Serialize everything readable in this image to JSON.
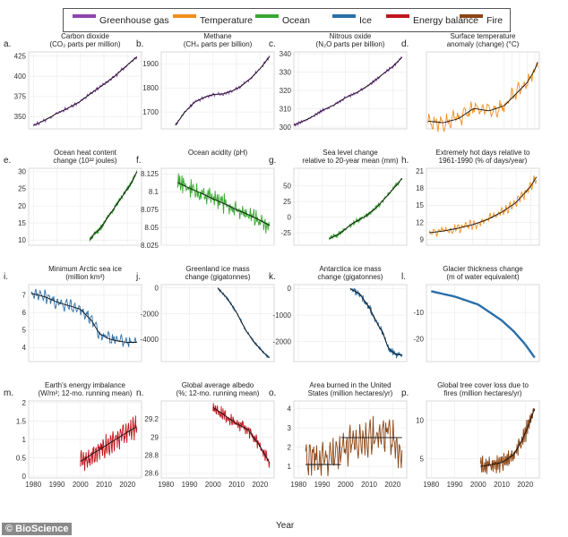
{
  "legend": [
    {
      "label": "Greenhouse gas",
      "color": "#8e44ad"
    },
    {
      "label": "Temperature",
      "color": "#f28e1c"
    },
    {
      "label": "Ocean",
      "color": "#3aa832"
    },
    {
      "label": "Ice",
      "color": "#2c6fa8"
    },
    {
      "label": "Energy balance",
      "color": "#c0141c"
    },
    {
      "label": "Fire",
      "color": "#8b4513"
    }
  ],
  "xlabel": "Year",
  "credit": "© BioScience",
  "chart_data": [
    {
      "label": "a.",
      "title": [
        "Carbon dioxide",
        "(CO₂ parts per million)"
      ],
      "category": "Greenhouse gas",
      "color": "#8e44ad",
      "type": "line",
      "x": [
        1980,
        1985,
        1990,
        1995,
        2000,
        2005,
        2010,
        2015,
        2020,
        2024
      ],
      "y": [
        339,
        346,
        354,
        361,
        369,
        380,
        390,
        401,
        414,
        424
      ],
      "ylim": [
        335,
        430
      ],
      "yticks": [
        350,
        375,
        400,
        425
      ],
      "xlim": [
        1978,
        2026
      ],
      "xticks": [
        1980,
        1990,
        2000,
        2010,
        2020
      ],
      "showXTicks": false,
      "noise": 2.0,
      "freq": 1.6
    },
    {
      "label": "b.",
      "title": [
        "Methane",
        "(CH₄ parts per billion)"
      ],
      "category": "Greenhouse gas",
      "color": "#8e44ad",
      "type": "line",
      "x": [
        1984,
        1988,
        1992,
        1996,
        2000,
        2004,
        2008,
        2012,
        2016,
        2020,
        2024
      ],
      "y": [
        1645,
        1700,
        1740,
        1760,
        1773,
        1775,
        1787,
        1808,
        1840,
        1880,
        1930
      ],
      "ylim": [
        1630,
        1950
      ],
      "yticks": [
        1700,
        1800,
        1900
      ],
      "xlim": [
        1978,
        2026
      ],
      "xticks": [
        1980,
        1990,
        2000,
        2010,
        2020
      ],
      "showXTicks": false,
      "noise": 6,
      "freq": 1.6
    },
    {
      "label": "c.",
      "title": [
        "Nitrous oxide",
        "(N₂O parts per billion)"
      ],
      "category": "Greenhouse gas",
      "color": "#8e44ad",
      "type": "line",
      "x": [
        1978,
        1985,
        1990,
        1995,
        2000,
        2005,
        2010,
        2015,
        2020,
        2024
      ],
      "y": [
        301,
        305,
        309,
        312,
        316,
        319,
        323,
        328,
        333,
        338
      ],
      "ylim": [
        299,
        341
      ],
      "yticks": [
        300,
        310,
        320,
        330,
        340
      ],
      "xlim": [
        1978,
        2026
      ],
      "xticks": [
        1980,
        1990,
        2000,
        2010,
        2020
      ],
      "showXTicks": false,
      "noise": 0.8,
      "freq": 2.2
    },
    {
      "label": "d.",
      "title": [
        "Surface temperature",
        "anomaly (change) (°C)"
      ],
      "category": "Temperature",
      "color": "#f28e1c",
      "type": "line",
      "x": [
        1880,
        1900,
        1920,
        1940,
        1960,
        1980,
        2000,
        2010,
        2020,
        2024
      ],
      "y": [
        0.35,
        0.32,
        0.4,
        0.6,
        0.55,
        0.65,
        0.95,
        1.1,
        1.35,
        1.5
      ],
      "ylim": [
        0.2,
        1.7
      ],
      "yticks": [],
      "xlim": [
        1878,
        2026
      ],
      "xticks": [],
      "showXTicks": false,
      "noise": 0.16,
      "freq": 0.9
    },
    {
      "label": "e.",
      "title": [
        "Ocean heat content",
        "change (10²² joules)"
      ],
      "category": "Ocean",
      "color": "#3aa832",
      "type": "line",
      "x": [
        2004,
        2006,
        2008,
        2010,
        2012,
        2014,
        2016,
        2018,
        2020,
        2022,
        2024
      ],
      "y": [
        10,
        12,
        13,
        15,
        17,
        19,
        21,
        23,
        25,
        27,
        30
      ],
      "ylim": [
        8.5,
        31
      ],
      "yticks": [
        10,
        15,
        20,
        25,
        30
      ],
      "xlim": [
        1978,
        2026
      ],
      "xticks": [
        1980,
        1990,
        2000,
        2010,
        2020
      ],
      "showXTicks": false,
      "noise": 0.7,
      "freq": 2.1
    },
    {
      "label": "f.",
      "title": [
        "Ocean acidity (pH)"
      ],
      "category": "Ocean",
      "color": "#3aa832",
      "type": "line",
      "x": [
        1985,
        1990,
        1995,
        2000,
        2005,
        2010,
        2015,
        2020,
        2024
      ],
      "y": [
        8.113,
        8.105,
        8.098,
        8.09,
        8.083,
        8.075,
        8.068,
        8.06,
        8.053
      ],
      "ylim": [
        8.025,
        8.133
      ],
      "yticks": [
        8.025,
        8.05,
        8.075,
        8.1,
        8.125
      ],
      "xlim": [
        1978,
        2026
      ],
      "xticks": [
        1980,
        1990,
        2000,
        2010,
        2020
      ],
      "showXTicks": false,
      "noise": 0.012,
      "freq": 2.4
    },
    {
      "label": "g.",
      "title": [
        "Sea level change",
        "relative to 20-year mean (mm)"
      ],
      "category": "Ocean",
      "color": "#3aa832",
      "type": "line",
      "x": [
        1993,
        1998,
        2003,
        2008,
        2013,
        2018,
        2023,
        2024
      ],
      "y": [
        -35,
        -25,
        -10,
        0,
        15,
        35,
        57,
        62
      ],
      "ylim": [
        -45,
        78
      ],
      "yticks": [
        -25,
        0,
        25,
        50
      ],
      "xlim": [
        1978,
        2026
      ],
      "xticks": [
        1980,
        1990,
        2000,
        2010,
        2020
      ],
      "showXTicks": false,
      "noise": 4,
      "freq": 2.6
    },
    {
      "label": "h.",
      "title": [
        "Extremely hot days relative to",
        "1961-1990 (% of days/year)"
      ],
      "category": "Temperature",
      "color": "#f28e1c",
      "type": "line",
      "x": [
        1950,
        1960,
        1970,
        1980,
        1990,
        2000,
        2010,
        2020,
        2024
      ],
      "y": [
        10.2,
        10.5,
        11,
        11.6,
        12.5,
        13.8,
        15.5,
        18.3,
        20
      ],
      "ylim": [
        8,
        21.5
      ],
      "yticks": [
        9,
        12,
        15,
        18,
        21
      ],
      "xlim": [
        1948,
        2026
      ],
      "xticks": [],
      "showXTicks": false,
      "noise": 0.8,
      "freq": 1.3
    },
    {
      "label": "i.",
      "title": [
        "Minimum Arctic sea ice",
        "(million km²)"
      ],
      "category": "Ice",
      "color": "#2c6fa8",
      "type": "line",
      "x": [
        1979,
        1985,
        1990,
        1995,
        2000,
        2005,
        2008,
        2012,
        2015,
        2020,
        2024
      ],
      "y": [
        7.1,
        6.9,
        6.6,
        6.4,
        6.2,
        5.5,
        4.8,
        4.5,
        4.4,
        4.3,
        4.3
      ],
      "ylim": [
        3.2,
        7.6
      ],
      "yticks": [
        4,
        5,
        6,
        7
      ],
      "xlim": [
        1978,
        2026
      ],
      "xticks": [
        1980,
        1990,
        2000,
        2010,
        2020
      ],
      "showXTicks": false,
      "noise": 0.35,
      "freq": 1.2
    },
    {
      "label": "j.",
      "title": [
        "Greenland ice mass",
        "change (gigatonnes)"
      ],
      "category": "Ice",
      "color": "#2c6fa8",
      "type": "line",
      "x": [
        2002,
        2006,
        2010,
        2014,
        2018,
        2022,
        2024
      ],
      "y": [
        0,
        -800,
        -1900,
        -3300,
        -4300,
        -5100,
        -5400
      ],
      "ylim": [
        -5700,
        250
      ],
      "yticks": [
        -4000,
        -2000,
        0
      ],
      "xlim": [
        1978,
        2026
      ],
      "xticks": [
        1980,
        1990,
        2000,
        2010,
        2020
      ],
      "showXTicks": false,
      "noise": 80,
      "freq": 2.8
    },
    {
      "label": "k.",
      "title": [
        "Antarctica ice mass",
        "change (gigatonnes)"
      ],
      "category": "Ice",
      "color": "#2c6fa8",
      "type": "line",
      "x": [
        2002,
        2006,
        2010,
        2014,
        2016,
        2018,
        2020,
        2022,
        2024
      ],
      "y": [
        0,
        -200,
        -700,
        -1400,
        -1700,
        -2200,
        -2400,
        -2500,
        -2500
      ],
      "ylim": [
        -2750,
        150
      ],
      "yticks": [
        -2000,
        -1000,
        0
      ],
      "xlim": [
        1978,
        2026
      ],
      "xticks": [
        1980,
        1990,
        2000,
        2010,
        2020
      ],
      "showXTicks": false,
      "noise": 120,
      "freq": 2.8
    },
    {
      "label": "l.",
      "title": [
        "Glacier thickness change",
        "(m of water equivalent)"
      ],
      "category": "Ice",
      "color": "#2c6fa8",
      "type": "line",
      "x": [
        1980,
        1990,
        2000,
        2005,
        2010,
        2015,
        2020,
        2024
      ],
      "y": [
        -2,
        -4,
        -7,
        -10,
        -13,
        -17,
        -22,
        -27
      ],
      "ylim": [
        -28.5,
        0.5
      ],
      "yticks": [
        -20,
        -10
      ],
      "xlim": [
        1978,
        2026
      ],
      "xticks": [
        1980,
        1990,
        2000,
        2010,
        2020
      ],
      "showXTicks": false,
      "noise": 0,
      "freq": 1,
      "thick": true
    },
    {
      "label": "m.",
      "title": [
        "Earth's energy imbalance",
        "(W/m²; 12-mo. running mean)"
      ],
      "category": "Energy balance",
      "color": "#c0141c",
      "type": "line",
      "x": [
        2000,
        2005,
        2010,
        2015,
        2020,
        2024
      ],
      "y": [
        0.4,
        0.6,
        0.8,
        1.0,
        1.2,
        1.35
      ],
      "ylim": [
        -0.05,
        2.05
      ],
      "yticks": [
        0,
        0.5,
        1,
        1.5,
        2
      ],
      "xlim": [
        1978,
        2026
      ],
      "xticks": [
        1980,
        1990,
        2000,
        2010,
        2020
      ],
      "showXTicks": true,
      "noise": 0.28,
      "freq": 1.1
    },
    {
      "label": "n.",
      "title": [
        "Global average albedo",
        "(%; 12-mo. running mean)"
      ],
      "category": "Energy balance",
      "color": "#c0141c",
      "type": "line",
      "x": [
        2000,
        2005,
        2010,
        2015,
        2020,
        2024
      ],
      "y": [
        29.33,
        29.24,
        29.15,
        29.08,
        28.9,
        28.72
      ],
      "ylim": [
        28.55,
        29.4
      ],
      "yticks": [
        28.6,
        28.8,
        29,
        29.2
      ],
      "xlim": [
        1978,
        2026
      ],
      "xticks": [
        1980,
        1990,
        2000,
        2010,
        2020
      ],
      "showXTicks": true,
      "noise": 0.06,
      "freq": 1.4
    },
    {
      "label": "o.",
      "title": [
        "Area burned in the United",
        "States (million hectares/yr)"
      ],
      "category": "Fire",
      "color": "#8b4513",
      "type": "line",
      "x": [
        1983,
        1988,
        1993,
        1998,
        2003,
        2008,
        2013,
        2018,
        2023,
        2024
      ],
      "y": [
        1.3,
        1.5,
        1.4,
        1.6,
        2.3,
        2.5,
        2.5,
        2.7,
        1.8,
        2.2
      ],
      "ylim": [
        0.4,
        4.4
      ],
      "yticks": [
        1,
        2,
        3,
        4
      ],
      "xlim": [
        1978,
        2026
      ],
      "xticks": [
        1980,
        1990,
        2000,
        2010,
        2020
      ],
      "showXTicks": true,
      "noise": 0.9,
      "freq": 1.4,
      "steps": [
        [
          1983,
          1998,
          1.1
        ],
        [
          1998,
          2024,
          2.5
        ]
      ]
    },
    {
      "label": "p.",
      "title": [
        "Global tree cover loss due to",
        "fires (million hectares/yr)"
      ],
      "category": "Fire",
      "color": "#8b4513",
      "type": "line",
      "x": [
        2001,
        2005,
        2010,
        2015,
        2018,
        2021,
        2024
      ],
      "y": [
        4,
        4.2,
        4.5,
        5.5,
        7,
        9,
        11.5
      ],
      "ylim": [
        2.5,
        12.5
      ],
      "yticks": [
        5,
        10
      ],
      "xlim": [
        1978,
        2026
      ],
      "xticks": [
        1980,
        1990,
        2000,
        2010,
        2020
      ],
      "showXTicks": true,
      "noise": 1.1,
      "freq": 1.6,
      "trend": true
    }
  ]
}
